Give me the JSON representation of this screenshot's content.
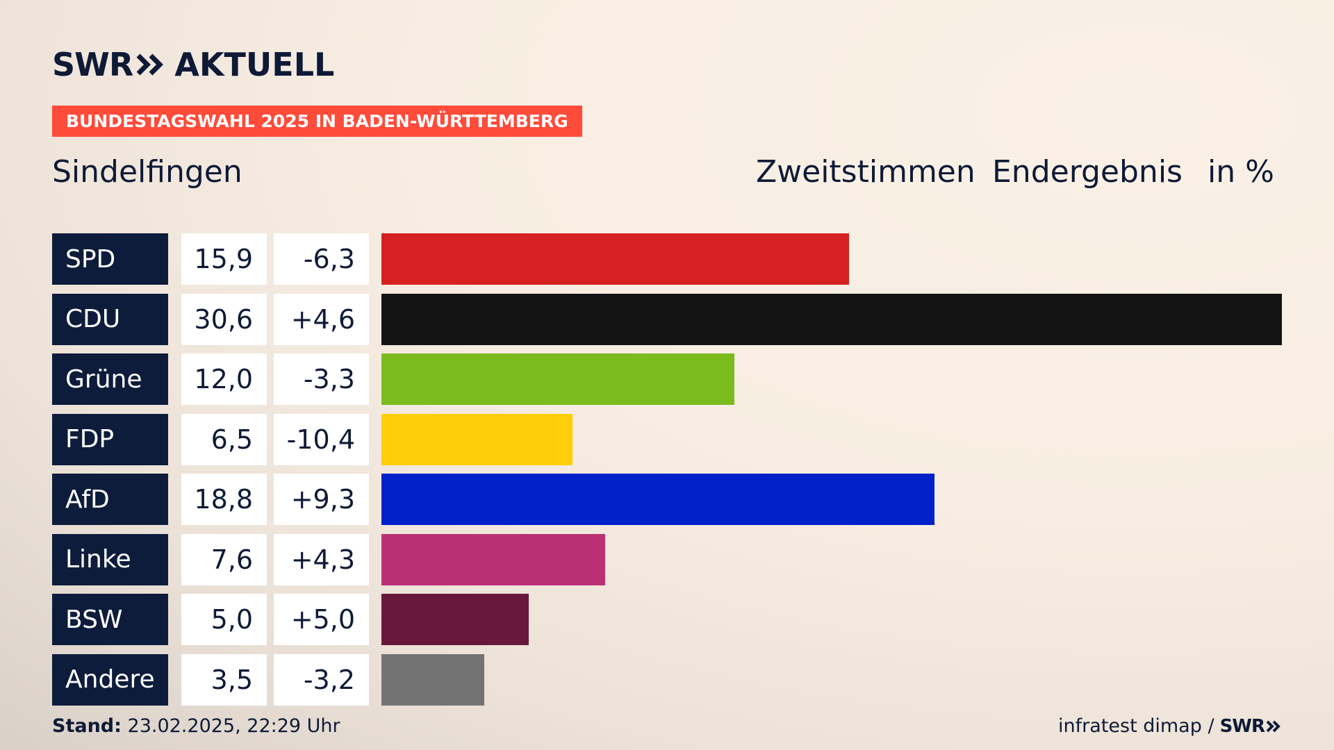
{
  "brand": {
    "logo_main": "SWR",
    "logo_sub": "AKTUELL",
    "footer_logo": "SWR"
  },
  "banner": "BUNDESTAGSWAHL 2025 IN BADEN-WÜRTTEMBERG",
  "place": "Sindelfingen",
  "header": {
    "vote_type": "Zweitstimmen",
    "status": "Endergebnis",
    "unit": "in %"
  },
  "footer": {
    "stand_label": "Stand:",
    "stand_value": "23.02.2025, 22:29 Uhr",
    "source": "infratest dimap /"
  },
  "chart_data": {
    "type": "bar",
    "orientation": "horizontal",
    "categories": [
      "SPD",
      "CDU",
      "Grüne",
      "FDP",
      "AfD",
      "Linke",
      "BSW",
      "Andere"
    ],
    "values": [
      15.9,
      30.6,
      12.0,
      6.5,
      18.8,
      7.6,
      5.0,
      3.5
    ],
    "value_labels": [
      "15,9",
      "30,6",
      "12,0",
      "6,5",
      "18,8",
      "7,6",
      "5,0",
      "3,5"
    ],
    "diff_labels": [
      "-6,3",
      "+4,6",
      "-3,3",
      "-10,4",
      "+9,3",
      "+4,3",
      "+5,0",
      "-3,2"
    ],
    "diffs": [
      -6.3,
      4.6,
      -3.3,
      -10.4,
      9.3,
      4.3,
      5.0,
      -3.2
    ],
    "colors": [
      "#d62021",
      "#141414",
      "#7abb1d",
      "#ffcd09",
      "#0020c8",
      "#bb3075",
      "#68183d",
      "#737373"
    ],
    "xlim": [
      0,
      30.6
    ],
    "grid": false,
    "legend": "none"
  }
}
